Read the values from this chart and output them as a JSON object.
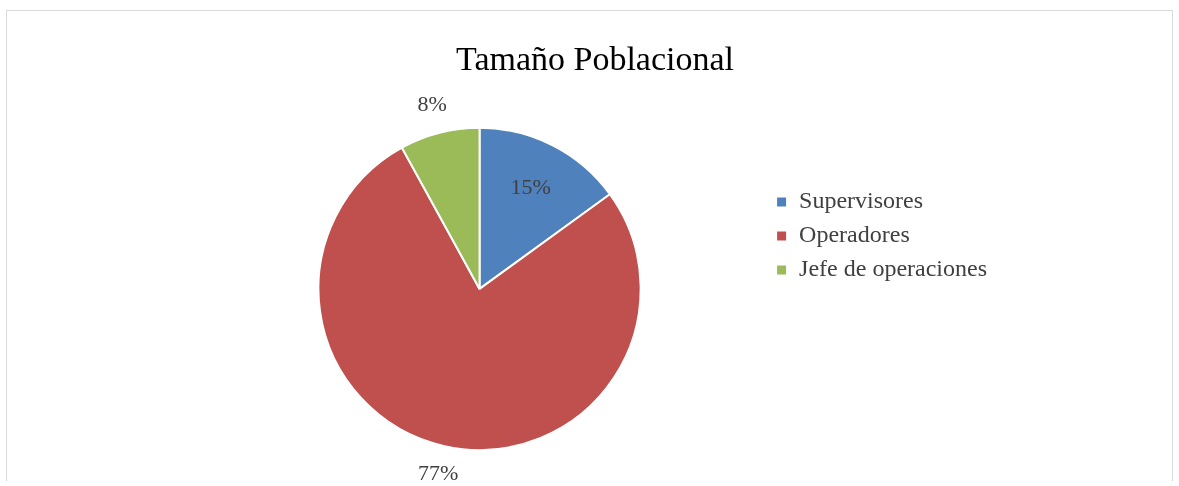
{
  "chart_data": {
    "type": "pie",
    "title": "Tamaño Poblacional",
    "categories": [
      "Supervisores",
      "Operadores",
      "Jefe de operaciones"
    ],
    "values": [
      15,
      77,
      8
    ],
    "colors": [
      "#4f81bd",
      "#c0504d",
      "#9bbb59"
    ],
    "value_labels": [
      "15%",
      "77%",
      "8%"
    ],
    "legend": "right"
  }
}
